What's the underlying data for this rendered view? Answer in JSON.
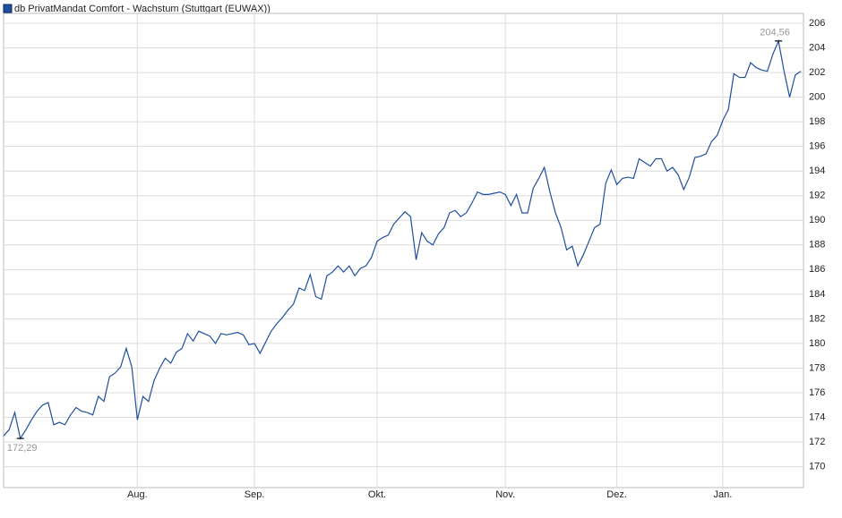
{
  "chart_data": {
    "type": "line",
    "series": [
      {
        "name": "db PrivatMandat Comfort - Wachstum (Stuttgart (EUWAX))",
        "color": "#1f4e9c",
        "values": [
          172.5,
          173.0,
          174.4,
          172.29,
          173.0,
          173.8,
          174.5,
          175.0,
          175.2,
          173.4,
          173.6,
          173.4,
          174.2,
          174.8,
          174.5,
          174.4,
          174.2,
          175.7,
          175.3,
          177.3,
          177.6,
          178.1,
          179.6,
          178.1,
          173.8,
          175.7,
          175.3,
          177.0,
          178.0,
          178.8,
          178.4,
          179.3,
          179.6,
          180.8,
          180.2,
          181.0,
          180.8,
          180.6,
          180.0,
          180.8,
          180.7,
          180.8,
          180.9,
          180.7,
          179.9,
          180.0,
          179.2,
          180.1,
          181.0,
          181.6,
          182.1,
          182.7,
          183.2,
          184.5,
          184.3,
          185.6,
          183.8,
          183.6,
          185.5,
          185.8,
          186.3,
          185.8,
          186.3,
          185.5,
          186.1,
          186.3,
          187.0,
          188.3,
          188.6,
          188.8,
          189.7,
          190.2,
          190.7,
          190.3,
          186.8,
          189.0,
          188.3,
          188.0,
          188.9,
          189.4,
          190.6,
          190.8,
          190.3,
          190.6,
          191.4,
          192.3,
          192.1,
          192.1,
          192.2,
          192.3,
          192.1,
          191.2,
          192.1,
          190.6,
          190.6,
          192.6,
          193.4,
          194.3,
          192.3,
          190.6,
          189.4,
          187.6,
          187.9,
          186.3,
          187.2,
          188.3,
          189.4,
          189.7,
          193.0,
          194.1,
          192.9,
          193.4,
          193.5,
          193.4,
          195.0,
          194.7,
          194.4,
          195.0,
          195.0,
          194.0,
          194.3,
          193.7,
          192.5,
          193.5,
          195.1,
          195.2,
          195.4,
          196.4,
          196.9,
          198.1,
          199.0,
          201.9,
          201.6,
          201.6,
          202.8,
          202.4,
          202.2,
          202.1,
          203.5,
          204.56,
          202.1,
          200.0,
          201.8,
          202.1
        ],
        "value_labels": [
          null,
          null,
          null,
          "172,29",
          null,
          null,
          null,
          null,
          null,
          null,
          null,
          null,
          null,
          null,
          null,
          null,
          null,
          null,
          null,
          null,
          null,
          null,
          null,
          null,
          null,
          null,
          null,
          null,
          null,
          null,
          null,
          null,
          null,
          null,
          null,
          null,
          null,
          null,
          null,
          null,
          null,
          null,
          null,
          null,
          null,
          null,
          null,
          null,
          null,
          null,
          null,
          null,
          null,
          null,
          null,
          null,
          null,
          null,
          null,
          null,
          null,
          null,
          null,
          null,
          null,
          null,
          null,
          null,
          null,
          null,
          null,
          null,
          null,
          null,
          null,
          null,
          null,
          null,
          null,
          null,
          null,
          null,
          null,
          null,
          null,
          null,
          null,
          null,
          null,
          null,
          null,
          null,
          null,
          null,
          null,
          null,
          null,
          null,
          null,
          null,
          null,
          null,
          null,
          null,
          null,
          null,
          null,
          null,
          null,
          null,
          null,
          null,
          null,
          null,
          null,
          null,
          null,
          null,
          null,
          null,
          null,
          null,
          null,
          null,
          null,
          null,
          null,
          null,
          null,
          null,
          null,
          null,
          null,
          null,
          null,
          null,
          null,
          null,
          null,
          "204,56",
          null,
          null,
          null,
          null
        ]
      }
    ],
    "categories": [
      null,
      null,
      null,
      null,
      null,
      null,
      null,
      null,
      null,
      null,
      null,
      null,
      null,
      null,
      null,
      null,
      null,
      null,
      null,
      null,
      null,
      null,
      null,
      null,
      "Aug.",
      null,
      null,
      null,
      null,
      null,
      null,
      null,
      null,
      null,
      null,
      null,
      null,
      null,
      null,
      null,
      null,
      null,
      null,
      null,
      null,
      "Sep.",
      null,
      null,
      null,
      null,
      null,
      null,
      null,
      null,
      null,
      null,
      null,
      null,
      null,
      null,
      null,
      null,
      null,
      null,
      null,
      null,
      null,
      "Okt.",
      null,
      null,
      null,
      null,
      null,
      null,
      null,
      null,
      null,
      null,
      null,
      null,
      null,
      null,
      null,
      null,
      null,
      null,
      null,
      null,
      null,
      null,
      "Nov.",
      null,
      null,
      null,
      null,
      null,
      null,
      null,
      null,
      null,
      null,
      null,
      null,
      null,
      null,
      null,
      null,
      null,
      null,
      null,
      "Dez.",
      null,
      null,
      null,
      null,
      null,
      null,
      null,
      null,
      null,
      null,
      null,
      null,
      null,
      null,
      null,
      null,
      null,
      null,
      "Jan.",
      null,
      null,
      null,
      null,
      null,
      null,
      null,
      null,
      null,
      null,
      null,
      null,
      null,
      null
    ],
    "ylim": [
      168.3,
      206.8
    ],
    "yticks": [
      170,
      172,
      174,
      176,
      178,
      180,
      182,
      184,
      186,
      188,
      190,
      192,
      194,
      196,
      198,
      200,
      202,
      204,
      206
    ],
    "grid": true
  }
}
